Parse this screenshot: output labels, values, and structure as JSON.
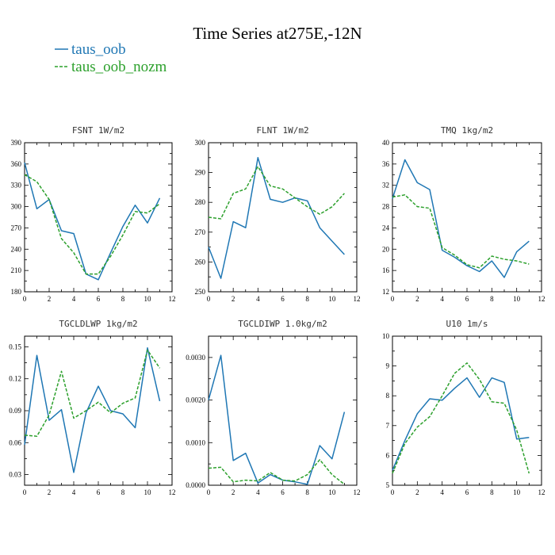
{
  "figure_title": "Time Series at275E,-12N",
  "legend": [
    {
      "label": "taus_oob",
      "color": "#1f77b4",
      "dash": "solid"
    },
    {
      "label": "taus_oob_nozm",
      "color": "#2ca02c",
      "dash": "dashed"
    }
  ],
  "chart_data": [
    {
      "type": "line",
      "title": "FSNT  1W/m2",
      "xlim": [
        0,
        12
      ],
      "ylim": [
        180,
        390
      ],
      "xticks": [
        0,
        2,
        4,
        6,
        8,
        10,
        12
      ],
      "yticks": [
        180,
        210,
        240,
        270,
        300,
        330,
        360,
        390
      ],
      "ytick_labels": [
        "180",
        "210",
        "240",
        "270",
        "300",
        "330",
        "360",
        "390"
      ],
      "x": [
        0,
        1,
        2,
        3,
        4,
        5,
        6,
        7,
        8,
        9,
        10,
        11
      ],
      "series": [
        {
          "name": "taus_oob",
          "values": [
            362,
            297,
            310,
            266,
            262,
            205,
            197,
            235,
            272,
            302,
            277,
            312
          ]
        },
        {
          "name": "taus_oob_nozm",
          "values": [
            345,
            335,
            310,
            255,
            235,
            205,
            205,
            230,
            260,
            293,
            291,
            304
          ]
        }
      ]
    },
    {
      "type": "line",
      "title": "FLNT  1W/m2",
      "xlim": [
        0,
        12
      ],
      "ylim": [
        250,
        300
      ],
      "xticks": [
        0,
        2,
        4,
        6,
        8,
        10,
        12
      ],
      "yticks": [
        250,
        260,
        270,
        280,
        290,
        300
      ],
      "ytick_labels": [
        "250",
        "260",
        "270",
        "280",
        "290",
        "300"
      ],
      "x": [
        0,
        1,
        2,
        3,
        4,
        5,
        6,
        7,
        8,
        9,
        10,
        11
      ],
      "series": [
        {
          "name": "taus_oob",
          "values": [
            265,
            254.5,
            273.5,
            271.5,
            295,
            281,
            280,
            281.5,
            280.5,
            271.5,
            267,
            262.5
          ]
        },
        {
          "name": "taus_oob_nozm",
          "values": [
            275,
            274.5,
            283,
            284.5,
            292,
            285.5,
            284.5,
            281.5,
            278.5,
            276,
            278.5,
            283
          ]
        }
      ]
    },
    {
      "type": "line",
      "title": "TMQ  1kg/m2",
      "xlim": [
        0,
        12
      ],
      "ylim": [
        12,
        40
      ],
      "xticks": [
        0,
        2,
        4,
        6,
        8,
        10,
        12
      ],
      "yticks": [
        12,
        16,
        20,
        24,
        28,
        32,
        36,
        40
      ],
      "ytick_labels": [
        "12",
        "16",
        "20",
        "24",
        "28",
        "32",
        "36",
        "40"
      ],
      "x": [
        0,
        1,
        2,
        3,
        4,
        5,
        6,
        7,
        8,
        9,
        10,
        11
      ],
      "series": [
        {
          "name": "taus_oob",
          "values": [
            29.5,
            36.8,
            32.5,
            31.2,
            19.8,
            18.5,
            16.9,
            15.8,
            17.8,
            14.7,
            19.5,
            21.5
          ]
        },
        {
          "name": "taus_oob_nozm",
          "values": [
            29.8,
            30.2,
            28,
            27.7,
            20.3,
            18.9,
            17.1,
            16.5,
            18.7,
            18.1,
            17.8,
            17.2
          ]
        }
      ]
    },
    {
      "type": "line",
      "title": "TGCLDLWP  1kg/m2",
      "xlim": [
        0,
        12
      ],
      "ylim": [
        0.02,
        0.16
      ],
      "xticks": [
        0,
        2,
        4,
        6,
        8,
        10,
        12
      ],
      "yticks": [
        0.03,
        0.06,
        0.09,
        0.12,
        0.15
      ],
      "ytick_labels": [
        "0.03",
        "0.06",
        "0.09",
        "0.12",
        "0.15"
      ],
      "x": [
        0,
        1,
        2,
        3,
        4,
        5,
        6,
        7,
        8,
        9,
        10,
        11
      ],
      "series": [
        {
          "name": "taus_oob",
          "values": [
            0.058,
            0.142,
            0.081,
            0.091,
            0.032,
            0.088,
            0.113,
            0.09,
            0.087,
            0.074,
            0.149,
            0.099
          ]
        },
        {
          "name": "taus_oob_nozm",
          "values": [
            0.067,
            0.066,
            0.086,
            0.127,
            0.083,
            0.09,
            0.098,
            0.088,
            0.097,
            0.102,
            0.147,
            0.13
          ]
        }
      ]
    },
    {
      "type": "line",
      "title": "TGCLDIWP  1.0kg/m2",
      "xlim": [
        0,
        12
      ],
      "ylim": [
        0,
        0.0035
      ],
      "xticks": [
        0,
        2,
        4,
        6,
        8,
        10,
        12
      ],
      "yticks": [
        0,
        0.001,
        0.002,
        0.003
      ],
      "ytick_labels": [
        "0.0000",
        "0.0010",
        "0.0020",
        "0.0030"
      ],
      "x": [
        0,
        1,
        2,
        3,
        4,
        5,
        6,
        7,
        8,
        9,
        10,
        11
      ],
      "series": [
        {
          "name": "taus_oob",
          "values": [
            0.002,
            0.00305,
            0.00058,
            0.00075,
            5e-05,
            0.00025,
            0.00012,
            8e-05,
            2e-05,
            0.00093,
            0.00062,
            0.00172
          ]
        },
        {
          "name": "taus_oob_nozm",
          "values": [
            0.0004,
            0.00042,
            8e-05,
            0.00012,
            0.0001,
            0.0003,
            0.00012,
            0.0001,
            0.00025,
            0.0006,
            0.00025,
            2e-05
          ]
        }
      ]
    },
    {
      "type": "line",
      "title": "U10  1m/s",
      "xlim": [
        0,
        12
      ],
      "ylim": [
        5,
        10
      ],
      "xticks": [
        0,
        2,
        4,
        6,
        8,
        10,
        12
      ],
      "yticks": [
        5,
        6,
        7,
        8,
        9,
        10
      ],
      "ytick_labels": [
        "5",
        "6",
        "7",
        "8",
        "9",
        "10"
      ],
      "x": [
        0,
        1,
        2,
        3,
        4,
        5,
        6,
        7,
        8,
        9,
        10,
        11
      ],
      "series": [
        {
          "name": "taus_oob",
          "values": [
            5.5,
            6.5,
            7.4,
            7.9,
            7.85,
            8.25,
            8.6,
            7.95,
            8.6,
            8.45,
            6.55,
            6.6
          ]
        },
        {
          "name": "taus_oob_nozm",
          "values": [
            5.4,
            6.4,
            6.95,
            7.3,
            8,
            8.75,
            9.1,
            8.55,
            7.8,
            7.75,
            6.85,
            5.4
          ]
        }
      ]
    }
  ]
}
